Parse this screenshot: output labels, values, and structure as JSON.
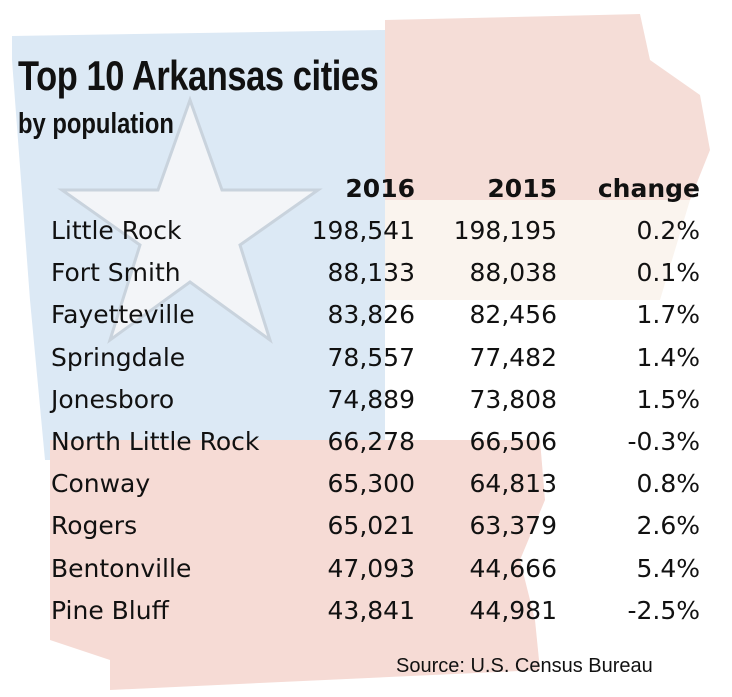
{
  "chart_data": {
    "type": "table",
    "title": "Top 10 Arkansas cities",
    "subtitle": "by population",
    "columns": [
      "",
      "2016",
      "2015",
      "change"
    ],
    "rows": [
      {
        "city": "Little Rock",
        "pop2016": "198,541",
        "pop2015": "198,195",
        "change": "0.2%"
      },
      {
        "city": "Fort Smith",
        "pop2016": "88,133",
        "pop2015": "88,038",
        "change": "0.1%"
      },
      {
        "city": "Fayetteville",
        "pop2016": "83,826",
        "pop2015": "82,456",
        "change": "1.7%"
      },
      {
        "city": "Springdale",
        "pop2016": "78,557",
        "pop2015": "77,482",
        "change": "1.4%"
      },
      {
        "city": "Jonesboro",
        "pop2016": "74,889",
        "pop2015": "73,808",
        "change": "1.5%"
      },
      {
        "city": "North Little Rock",
        "pop2016": "66,278",
        "pop2015": "66,506",
        "change": "-0.3%"
      },
      {
        "city": "Conway",
        "pop2016": "65,300",
        "pop2015": "64,813",
        "change": "0.8%"
      },
      {
        "city": "Rogers",
        "pop2016": "65,021",
        "pop2015": "63,379",
        "change": "2.6%"
      },
      {
        "city": "Bentonville",
        "pop2016": "47,093",
        "pop2015": "44,666",
        "change": "5.4%"
      },
      {
        "city": "Pine Bluff",
        "pop2016": "43,841",
        "pop2015": "44,981",
        "change": "-2.5%"
      }
    ],
    "source": "Source: U.S. Census Bureau"
  },
  "colors": {
    "blue_tint": "#dbe9f5",
    "red_tint": "#f6dcd6",
    "star": "#f4f6f8"
  }
}
